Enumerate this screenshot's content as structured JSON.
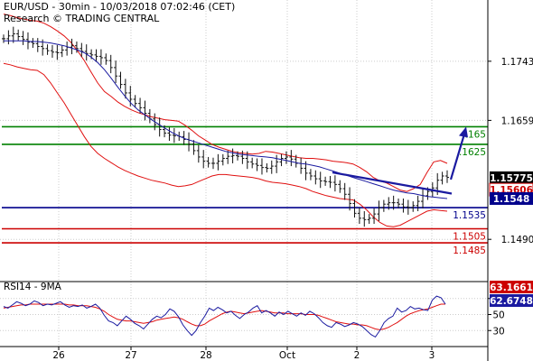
{
  "header": {
    "title": "EUR/USD - 30min - 10/03/2018 07:02:46 (CET)",
    "source": "Research © TRADING CENTRAL"
  },
  "colors": {
    "candles": "#111111",
    "sma": "#1a1aa0",
    "bollinger": "#e01010",
    "resistance": "#008000",
    "support_blue": "#00008b",
    "support_red": "#cc0000",
    "rsi": "#1a1aa0",
    "rsi_ma": "#e01010",
    "grid": "#cccccc",
    "forecast_arrow": "#1a1aa0",
    "last_price_bg": "#000000",
    "sma_label_bg": "#00008b",
    "rsi_ma_label_bg": "#cc0000",
    "rsi_label_bg": "#1a1aa0",
    "bollinger_label_bg": "#ffffff"
  },
  "chart_data": [
    {
      "type": "candlestick",
      "pair": "EUR/USD",
      "timeframe": "30min",
      "ylim": [
        1.143,
        1.183
      ],
      "price_axis_ticks": [
        "1.1743",
        "1.1659",
        "1.1490"
      ],
      "date_labels": [
        "26",
        "27",
        "28",
        "Oct",
        "2",
        "3"
      ],
      "grid": true,
      "levels": [
        {
          "value": 1.165,
          "label": ".165",
          "color": "#008000"
        },
        {
          "value": 1.1625,
          "label": ".1625",
          "color": "#008000"
        },
        {
          "value": 1.1535,
          "label": "1.1535",
          "color": "#00008b"
        },
        {
          "value": 1.1505,
          "label": "1.1505",
          "color": "#cc0000"
        },
        {
          "value": 1.1485,
          "label": "1.1485",
          "color": "#cc0000"
        }
      ],
      "price_markers": [
        {
          "value": 1.15775,
          "label": "1.15775",
          "kind": "last-price"
        },
        {
          "value": 1.15606,
          "label": "1.15606",
          "kind": "bollinger"
        },
        {
          "value": 1.1548,
          "label": "1.1548",
          "kind": "moving-average"
        }
      ],
      "forecast": {
        "from": 1.1575,
        "to": 1.165
      },
      "trendline": {
        "from": 1.1585,
        "to": 1.1555
      },
      "series": {
        "close": [
          1.1775,
          1.1779,
          1.1782,
          1.1778,
          1.1774,
          1.177,
          1.1768,
          1.1764,
          1.1761,
          1.1758,
          1.1756,
          1.1755,
          1.1759,
          1.1763,
          1.1765,
          1.1761,
          1.1757,
          1.1754,
          1.1752,
          1.175,
          1.1748,
          1.1744,
          1.1734,
          1.1722,
          1.171,
          1.1698,
          1.1689,
          1.1683,
          1.1677,
          1.1669,
          1.1661,
          1.1653,
          1.1646,
          1.1641,
          1.1638,
          1.1637,
          1.1636,
          1.1632,
          1.1625,
          1.1616,
          1.1607,
          1.1601,
          1.1598,
          1.1598,
          1.1601,
          1.1605,
          1.1608,
          1.1609,
          1.1608,
          1.1605,
          1.16,
          1.1597,
          1.1595,
          1.1592,
          1.1591,
          1.1594,
          1.16,
          1.1605,
          1.1607,
          1.1604,
          1.1598,
          1.1591,
          1.1584,
          1.158,
          1.1576,
          1.1573,
          1.1572,
          1.1571,
          1.1568,
          1.1562,
          1.1554,
          1.1541,
          1.1527,
          1.152,
          1.1518,
          1.152,
          1.1526,
          1.1535,
          1.154,
          1.1542,
          1.1542,
          1.154,
          1.1536,
          1.1535,
          1.1538,
          1.1544,
          1.1552,
          1.1558,
          1.1563,
          1.1574,
          1.158,
          1.1578
        ],
        "sma": [
          1.1772,
          1.1772,
          1.1772,
          1.1772,
          1.1771,
          1.1771,
          1.177,
          1.1769,
          1.1767,
          1.1765,
          1.1762,
          1.1759,
          1.1755,
          1.1749,
          1.1741,
          1.1731,
          1.1719,
          1.1706,
          1.1694,
          1.1683,
          1.1674,
          1.1667,
          1.166,
          1.1654,
          1.1648,
          1.1642,
          1.1637,
          1.1633,
          1.163,
          1.1627,
          1.1624,
          1.1621,
          1.1618,
          1.1615,
          1.1613,
          1.1611,
          1.161,
          1.1609,
          1.1608,
          1.1607,
          1.1606,
          1.1604,
          1.1602,
          1.16,
          1.1598,
          1.1597,
          1.1595,
          1.1593,
          1.159,
          1.1587,
          1.1584,
          1.1581,
          1.1578,
          1.1575,
          1.1572,
          1.1569,
          1.1566,
          1.1563,
          1.156,
          1.1558,
          1.1556,
          1.1555,
          1.1553,
          1.1551,
          1.155,
          1.1549,
          1.1548
        ],
        "bollinger_upper": [
          1.181,
          1.1808,
          1.1805,
          1.1803,
          1.1801,
          1.18,
          1.1797,
          1.1792,
          1.1786,
          1.1779,
          1.177,
          1.1758,
          1.1744,
          1.1728,
          1.1712,
          1.17,
          1.1693,
          1.1685,
          1.1679,
          1.1674,
          1.167,
          1.1667,
          1.1664,
          1.1662,
          1.166,
          1.1659,
          1.1658,
          1.1652,
          1.1645,
          1.1637,
          1.1631,
          1.1625,
          1.1621,
          1.1618,
          1.1615,
          1.1613,
          1.1612,
          1.1611,
          1.1612,
          1.1615,
          1.1614,
          1.1612,
          1.161,
          1.1608,
          1.1606,
          1.1605,
          1.1605,
          1.1604,
          1.1603,
          1.1601,
          1.16,
          1.1599,
          1.1597,
          1.1592,
          1.1586,
          1.1578,
          1.1573,
          1.157,
          1.1565,
          1.156,
          1.1558,
          1.1562,
          1.1568,
          1.1585,
          1.16,
          1.1602,
          1.1598
        ],
        "bollinger_lower": [
          1.174,
          1.1738,
          1.1735,
          1.1733,
          1.1731,
          1.173,
          1.1724,
          1.1712,
          1.1698,
          1.1684,
          1.1668,
          1.1652,
          1.1636,
          1.1622,
          1.1612,
          1.1605,
          1.1599,
          1.1593,
          1.1588,
          1.1584,
          1.158,
          1.1577,
          1.1574,
          1.1572,
          1.157,
          1.1567,
          1.1565,
          1.1566,
          1.1568,
          1.1572,
          1.1576,
          1.158,
          1.1582,
          1.1582,
          1.1581,
          1.158,
          1.1579,
          1.1578,
          1.1576,
          1.1573,
          1.1571,
          1.157,
          1.1569,
          1.1567,
          1.1565,
          1.1562,
          1.1558,
          1.1555,
          1.1552,
          1.155,
          1.1548,
          1.1547,
          1.1546,
          1.154,
          1.1532,
          1.1522,
          1.1514,
          1.1509,
          1.1508,
          1.151,
          1.1515,
          1.152,
          1.1525,
          1.153,
          1.1532,
          1.1531,
          1.153
        ]
      }
    },
    {
      "type": "line",
      "title": "RSI14 - 9MA",
      "ylim": [
        10,
        90
      ],
      "axis_ticks": [
        70,
        50,
        30
      ],
      "markers": [
        {
          "value": 63.1661,
          "label": "63.1661",
          "kind": "rsi-ma"
        },
        {
          "value": 62.6748,
          "label": "62.6748",
          "kind": "rsi"
        }
      ],
      "series": [
        {
          "values": [
            60,
            58,
            62,
            66,
            64,
            61,
            63,
            67,
            65,
            61,
            63,
            62,
            64,
            66,
            62,
            59,
            61,
            60,
            62,
            58,
            60,
            63,
            58,
            49,
            42,
            40,
            36,
            42,
            48,
            44,
            39,
            36,
            32,
            38,
            44,
            48,
            46,
            50,
            57,
            54,
            47,
            37,
            30,
            24,
            30,
            40,
            48,
            58,
            55,
            59,
            56,
            52,
            54,
            49,
            45,
            50,
            53,
            58,
            61,
            52,
            55,
            52,
            48,
            53,
            50,
            54,
            51,
            48,
            52,
            49,
            54,
            51,
            46,
            40,
            36,
            34,
            40,
            38,
            35,
            37,
            40,
            38,
            35,
            30,
            25,
            22,
            30,
            40,
            45,
            48,
            58,
            53,
            55,
            60,
            57,
            58,
            56,
            55,
            68,
            73,
            71,
            63
          ]
        },
        {
          "values": [
            58,
            59,
            60,
            61,
            62,
            62,
            63,
            63,
            63,
            63,
            63,
            63,
            63,
            63,
            63,
            62,
            62,
            61,
            61,
            61,
            60,
            59,
            57,
            54,
            50,
            47,
            44,
            43,
            42,
            42,
            41,
            40,
            39,
            40,
            41,
            43,
            44,
            45,
            46,
            47,
            46,
            44,
            41,
            38,
            36,
            36,
            38,
            42,
            45,
            48,
            51,
            53,
            54,
            53,
            52,
            51,
            52,
            53,
            54,
            55,
            54,
            53,
            52,
            52,
            52,
            51,
            51,
            51,
            51,
            50,
            50,
            50,
            49,
            47,
            45,
            43,
            41,
            40,
            39,
            38,
            38,
            37,
            37,
            36,
            34,
            32,
            31,
            32,
            34,
            37,
            40,
            44,
            48,
            51,
            53,
            55,
            56,
            57,
            59,
            61,
            63,
            63
          ]
        }
      ]
    }
  ]
}
